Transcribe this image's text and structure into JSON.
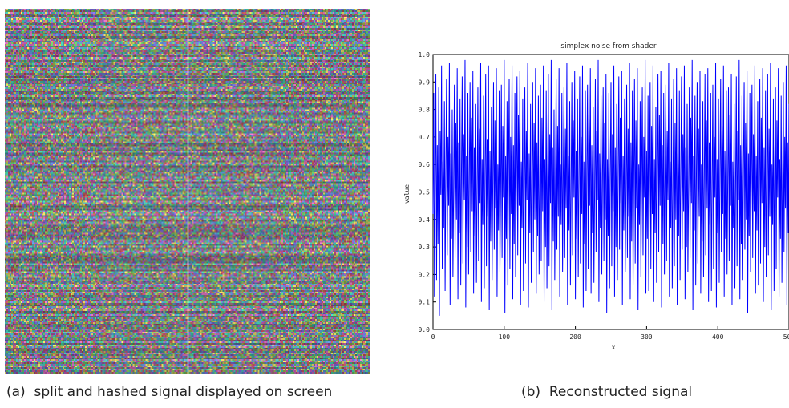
{
  "figures": {
    "a": {
      "caption_label": "(a)",
      "caption_text": "split and hashed signal displayed on screen"
    },
    "b": {
      "caption_label": "(b)",
      "caption_text": "Reconstructed signal"
    }
  },
  "noise_image": {
    "palette": [
      "#b04fa0",
      "#4fa6b0",
      "#6cc96a",
      "#d46fb5",
      "#5a8fd0",
      "#9aa84c",
      "#3ec4a9",
      "#c25a5a",
      "#7a6ad8",
      "#e0d060"
    ]
  },
  "chart_data": {
    "type": "line",
    "title": "simplex noise from shader",
    "xlabel": "x",
    "ylabel": "value",
    "xlim": [
      0,
      500
    ],
    "ylim": [
      0.0,
      1.0
    ],
    "x_ticks": [
      0,
      100,
      200,
      300,
      400,
      500
    ],
    "x_tick_labels": [
      "0",
      "100",
      "200",
      "300",
      "400",
      "500"
    ],
    "y_ticks": [
      0.0,
      0.1,
      0.2,
      0.3,
      0.4,
      0.5,
      0.6,
      0.7,
      0.8,
      0.9,
      1.0
    ],
    "y_tick_labels": [
      "0.0",
      "0.1",
      "0.2",
      "0.3",
      "0.4",
      "0.5",
      "0.6",
      "0.7",
      "0.8",
      "0.9",
      "1.0"
    ],
    "series_color": "#0000ff",
    "grid": false,
    "series": [
      {
        "x_start": 0,
        "x_step": 1,
        "values": [
          0.42,
          0.86,
          0.12,
          0.55,
          0.93,
          0.18,
          0.67,
          0.31,
          0.88,
          0.05,
          0.72,
          0.49,
          0.96,
          0.22,
          0.61,
          0.37,
          0.83,
          0.14,
          0.58,
          0.91,
          0.27,
          0.7,
          0.45,
          0.97,
          0.09,
          0.64,
          0.33,
          0.8,
          0.19,
          0.53,
          0.89,
          0.26,
          0.75,
          0.4,
          0.95,
          0.11,
          0.68,
          0.35,
          0.84,
          0.16,
          0.59,
          0.92,
          0.24,
          0.71,
          0.47,
          0.98,
          0.08,
          0.63,
          0.3,
          0.86,
          0.2,
          0.56,
          0.9,
          0.28,
          0.77,
          0.43,
          0.94,
          0.13,
          0.66,
          0.34,
          0.82,
          0.17,
          0.52,
          0.88,
          0.25,
          0.73,
          0.46,
          0.97,
          0.1,
          0.62,
          0.38,
          0.85,
          0.15,
          0.57,
          0.93,
          0.23,
          0.69,
          0.41,
          0.96,
          0.07,
          0.65,
          0.32,
          0.81,
          0.18,
          0.54,
          0.9,
          0.29,
          0.76,
          0.44,
          0.95,
          0.12,
          0.6,
          0.36,
          0.87,
          0.21,
          0.5,
          0.89,
          0.26,
          0.74,
          0.48,
          0.98,
          0.06,
          0.63,
          0.33,
          0.83,
          0.16,
          0.58,
          0.91,
          0.22,
          0.7,
          0.42,
          0.96,
          0.11,
          0.67,
          0.31,
          0.86,
          0.19,
          0.55,
          0.92,
          0.27,
          0.78,
          0.45,
          0.94,
          0.09,
          0.61,
          0.37,
          0.84,
          0.14,
          0.53,
          0.88,
          0.24,
          0.72,
          0.47,
          0.97,
          0.08,
          0.64,
          0.35,
          0.82,
          0.17,
          0.56,
          0.9,
          0.28,
          0.75,
          0.4,
          0.95,
          0.13,
          0.68,
          0.34,
          0.85,
          0.2,
          0.51,
          0.89,
          0.25,
          0.77,
          0.43,
          0.96,
          0.1,
          0.62,
          0.3,
          0.87,
          0.15,
          0.59,
          0.93,
          0.23,
          0.71,
          0.46,
          0.98,
          0.07,
          0.66,
          0.32,
          0.8,
          0.18,
          0.54,
          0.91,
          0.29,
          0.74,
          0.41,
          0.95,
          0.12,
          0.6,
          0.38,
          0.86,
          0.21,
          0.57,
          0.88,
          0.26,
          0.73,
          0.44,
          0.97,
          0.09,
          0.63,
          0.36,
          0.83,
          0.16,
          0.52,
          0.9,
          0.27,
          0.76,
          0.48,
          0.94,
          0.11,
          0.65,
          0.33,
          0.84,
          0.19,
          0.55,
          0.92,
          0.24,
          0.7,
          0.42,
          0.96,
          0.08,
          0.61,
          0.31,
          0.87,
          0.14,
          0.58,
          0.89,
          0.22,
          0.78,
          0.45,
          0.95,
          0.13,
          0.67,
          0.35,
          0.81,
          0.17,
          0.5,
          0.91,
          0.28,
          0.72,
          0.47,
          0.98,
          0.1,
          0.64,
          0.37,
          0.85,
          0.2,
          0.53,
          0.88,
          0.25,
          0.75,
          0.4,
          0.93,
          0.06,
          0.62,
          0.34,
          0.86,
          0.15,
          0.56,
          0.9,
          0.23,
          0.71,
          0.43,
          0.96,
          0.12,
          0.66,
          0.3,
          0.82,
          0.18,
          0.59,
          0.92,
          0.29,
          0.77,
          0.46,
          0.94,
          0.09,
          0.63,
          0.36,
          0.84,
          0.21,
          0.51,
          0.89,
          0.26,
          0.73,
          0.41,
          0.97,
          0.11,
          0.68,
          0.32,
          0.87,
          0.16,
          0.57,
          0.91,
          0.24,
          0.76,
          0.44,
          0.95,
          0.07,
          0.6,
          0.38,
          0.83,
          0.19,
          0.54,
          0.88,
          0.27,
          0.7,
          0.48,
          0.98,
          0.13,
          0.65,
          0.33,
          0.85,
          0.14,
          0.52,
          0.9,
          0.22,
          0.74,
          0.42,
          0.96,
          0.1,
          0.62,
          0.35,
          0.81,
          0.17,
          0.58,
          0.93,
          0.28,
          0.78,
          0.45,
          0.94,
          0.08,
          0.67,
          0.31,
          0.86,
          0.2,
          0.55,
          0.89,
          0.25,
          0.72,
          0.47,
          0.97,
          0.12,
          0.61,
          0.37,
          0.84,
          0.15,
          0.5,
          0.91,
          0.23,
          0.75,
          0.4,
          0.95,
          0.09,
          0.64,
          0.34,
          0.87,
          0.18,
          0.56,
          0.92,
          0.29,
          0.71,
          0.43,
          0.96,
          0.11,
          0.66,
          0.3,
          0.82,
          0.21,
          0.53,
          0.88,
          0.26,
          0.77,
          0.46,
          0.98,
          0.07,
          0.63,
          0.36,
          0.85,
          0.16,
          0.59,
          0.9,
          0.24,
          0.73,
          0.41,
          0.94,
          0.13,
          0.6,
          0.32,
          0.83,
          0.19,
          0.54,
          0.93,
          0.27,
          0.76,
          0.44,
          0.95,
          0.1,
          0.68,
          0.38,
          0.86,
          0.14,
          0.51,
          0.89,
          0.22,
          0.7,
          0.48,
          0.97,
          0.08,
          0.62,
          0.35,
          0.84,
          0.17,
          0.57,
          0.91,
          0.28,
          0.74,
          0.42,
          0.96,
          0.12,
          0.65,
          0.33,
          0.87,
          0.2,
          0.55,
          0.88,
          0.25,
          0.78,
          0.45,
          0.93,
          0.09,
          0.61,
          0.37,
          0.82,
          0.15,
          0.52,
          0.92,
          0.23,
          0.72,
          0.47,
          0.98,
          0.11,
          0.67,
          0.31,
          0.85,
          0.18,
          0.58,
          0.9,
          0.29,
          0.75,
          0.4,
          0.94,
          0.06,
          0.64,
          0.34,
          0.86,
          0.21,
          0.56,
          0.89,
          0.26,
          0.71,
          0.43,
          0.96,
          0.13,
          0.63,
          0.36,
          0.83,
          0.16,
          0.5,
          0.91,
          0.24,
          0.77,
          0.46,
          0.95,
          0.1,
          0.66,
          0.3,
          0.87,
          0.19,
          0.53,
          0.93,
          0.27,
          0.73,
          0.41,
          0.97,
          0.07,
          0.6,
          0.38,
          0.84,
          0.14,
          0.59,
          0.88,
          0.22,
          0.76,
          0.48,
          0.95,
          0.12,
          0.62,
          0.33,
          0.85,
          0.17,
          0.54,
          0.9,
          0.28,
          0.7,
          0.44,
          0.96,
          0.09,
          0.68,
          0.35,
          0.82,
          0.2,
          0.57,
          0.92,
          0.25,
          0.74,
          0.42,
          0.98,
          0.11,
          0.65,
          0.32,
          0.86,
          0.15,
          0.51,
          0.89,
          0.23,
          0.78,
          0.45,
          0.94,
          0.08,
          0.61,
          0.37,
          0.87,
          0.18,
          0.55,
          0.91,
          0.29,
          0.72,
          0.47,
          0.96,
          0.13,
          0.64,
          0.31,
          0.83,
          0.21,
          0.58,
          0.88,
          0.26,
          0.75,
          0.4,
          0.95,
          0.1,
          0.67,
          0.36,
          0.84,
          0.16,
          0.52
        ]
      }
    ]
  }
}
